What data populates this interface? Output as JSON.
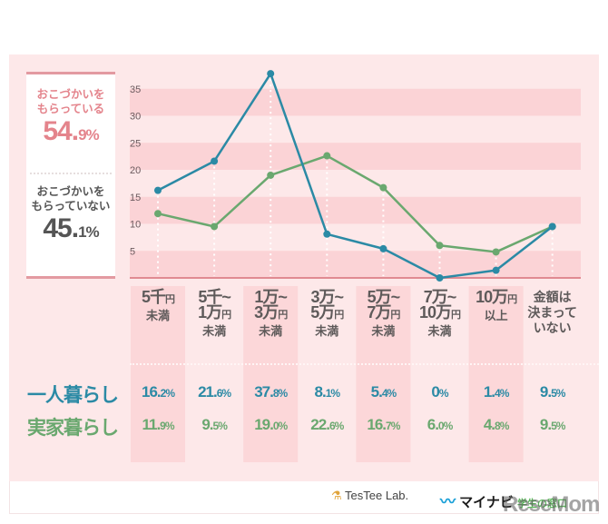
{
  "summary": {
    "receive_label_line1": "おこづかいを",
    "receive_label_line2": "もらっている",
    "receive_pct_int": "54.",
    "receive_pct_dec": "9%",
    "not_receive_label_line1": "おこづかいを",
    "not_receive_label_line2": "もらっていない",
    "not_receive_pct_int": "45.",
    "not_receive_pct_dec": "1%"
  },
  "colors": {
    "solo": "#2b8aa5",
    "home": "#6aa86f",
    "accent_pink": "#e4848c",
    "band": "#fbd3d6",
    "background": "#fde8e9"
  },
  "chart_data": {
    "type": "line",
    "title": "",
    "xlabel": "",
    "ylabel": "",
    "ylim": [
      0,
      38
    ],
    "yticks": [
      5,
      10,
      15,
      20,
      25,
      30,
      35
    ],
    "grid": "horizontal bands",
    "categories": [
      {
        "lines": [
          [
            "5千",
            "円"
          ],
          [
            "未満"
          ]
        ]
      },
      {
        "lines": [
          [
            "5千~"
          ],
          [
            "1万",
            "円"
          ],
          [
            "未満"
          ]
        ]
      },
      {
        "lines": [
          [
            "1万~"
          ],
          [
            "3万",
            "円"
          ],
          [
            "未満"
          ]
        ]
      },
      {
        "lines": [
          [
            "3万~"
          ],
          [
            "5万",
            "円"
          ],
          [
            "未満"
          ]
        ]
      },
      {
        "lines": [
          [
            "5万~"
          ],
          [
            "7万",
            "円"
          ],
          [
            "未満"
          ]
        ]
      },
      {
        "lines": [
          [
            "7万~"
          ],
          [
            "10万",
            "円"
          ],
          [
            "未満"
          ]
        ]
      },
      {
        "lines": [
          [
            "10万",
            "円"
          ],
          [
            "以上"
          ]
        ]
      },
      {
        "lines": [
          [
            "金額は"
          ],
          [
            "決まって"
          ],
          [
            "いない"
          ]
        ]
      }
    ],
    "category_names": [
      "5千円未満",
      "5千~1万円未満",
      "1万~3万円未満",
      "3万~5万円未満",
      "5万~7万円未満",
      "7万~10万円未満",
      "10万円以上",
      "金額は決まっていない"
    ],
    "series": [
      {
        "name": "一人暮らし",
        "color": "#2b8aa5",
        "values": [
          16.2,
          21.6,
          37.8,
          8.1,
          5.4,
          0,
          1.4,
          9.5
        ],
        "labels": [
          [
            "16.",
            "2%"
          ],
          [
            "21.",
            "6%"
          ],
          [
            "37.",
            "8%"
          ],
          [
            "8.",
            "1%"
          ],
          [
            "5.",
            "4%"
          ],
          [
            "0",
            "%"
          ],
          [
            "1.",
            "4%"
          ],
          [
            "9.",
            "5%"
          ]
        ]
      },
      {
        "name": "実家暮らし",
        "color": "#6aa86f",
        "values": [
          11.9,
          9.5,
          19.0,
          22.6,
          16.7,
          6.0,
          4.8,
          9.5
        ],
        "labels": [
          [
            "11.",
            "9%"
          ],
          [
            "9.",
            "5%"
          ],
          [
            "19.",
            "0%"
          ],
          [
            "22.",
            "6%"
          ],
          [
            "16.",
            "7%"
          ],
          [
            "6.",
            "0%"
          ],
          [
            "4.",
            "8%"
          ],
          [
            "9.",
            "5%"
          ]
        ]
      }
    ],
    "legend": "row labels at left of value table"
  },
  "footer": {
    "testee_logo": "TesTee Lab.",
    "mynavi_logo": "マイナビ",
    "mynavi_sub": "学生の窓口",
    "watermark": "ReseMom"
  }
}
